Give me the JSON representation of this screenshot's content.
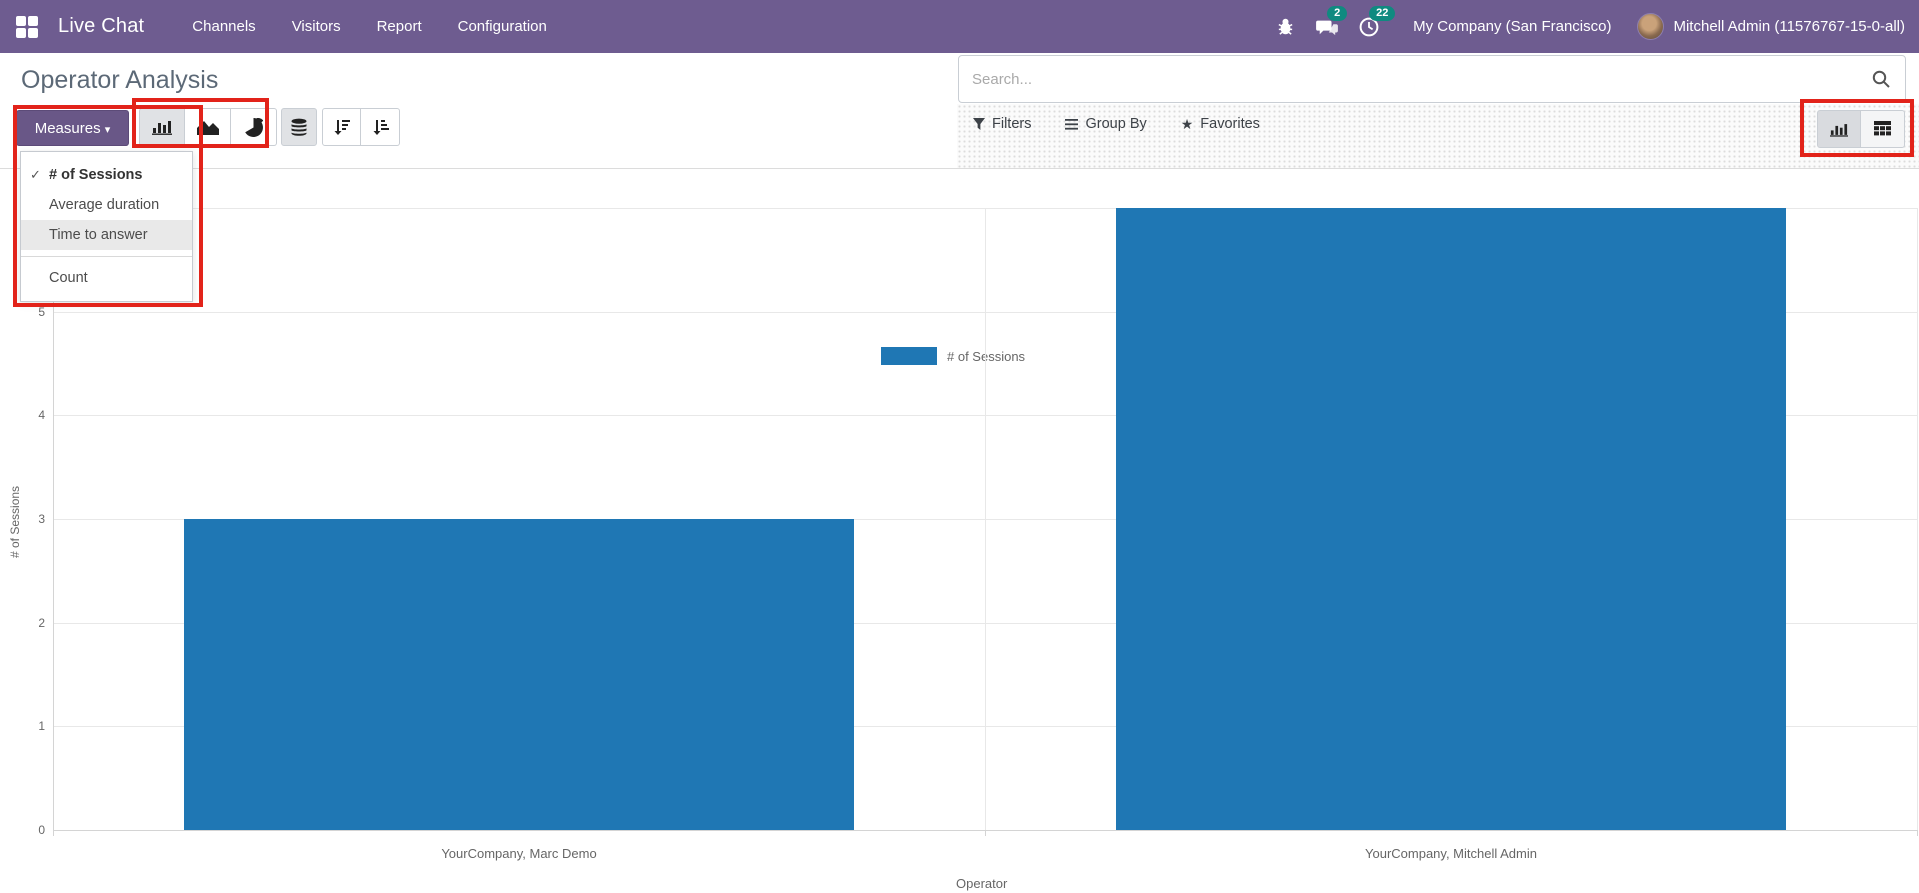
{
  "nav": {
    "app_name": "Live Chat",
    "items": [
      {
        "label": "Channels"
      },
      {
        "label": "Visitors"
      },
      {
        "label": "Report"
      },
      {
        "label": "Configuration"
      }
    ],
    "badges": {
      "messages": "2",
      "activities": "22"
    },
    "company": "My Company (San Francisco)",
    "user": "Mitchell Admin (11576767-15-0-all)"
  },
  "control_panel": {
    "title": "Operator Analysis",
    "measures_label": "Measures",
    "menu": {
      "items": [
        {
          "label": "# of Sessions",
          "checked": true
        },
        {
          "label": "Average duration"
        },
        {
          "label": "Time to answer",
          "highlighted": true
        },
        {
          "label": "Count",
          "separated": true
        }
      ],
      "check_glyph": "✓"
    },
    "search": {
      "placeholder": "Search..."
    },
    "filters_label": "Filters",
    "group_by_label": "Group By",
    "favorites_label": "Favorites"
  },
  "chart_data": {
    "type": "bar",
    "title": "",
    "categories": [
      "YourCompany, Marc Demo",
      "YourCompany, Mitchell Admin"
    ],
    "series": [
      {
        "name": "# of Sessions",
        "values": [
          3,
          6
        ]
      }
    ],
    "legend": "# of Sessions",
    "legend_position": "top",
    "xlabel": "Operator",
    "ylabel": "# of Sessions",
    "ylim": [
      0,
      6
    ],
    "ytick_step": 1,
    "grid": true,
    "bar_color": "#1f77b4"
  },
  "colors": {
    "navbar": "#6e5c90",
    "measures_button": "#695787",
    "badge": "#0f8a80",
    "bar": "#1f77b4",
    "annotation": "#e2231a"
  }
}
